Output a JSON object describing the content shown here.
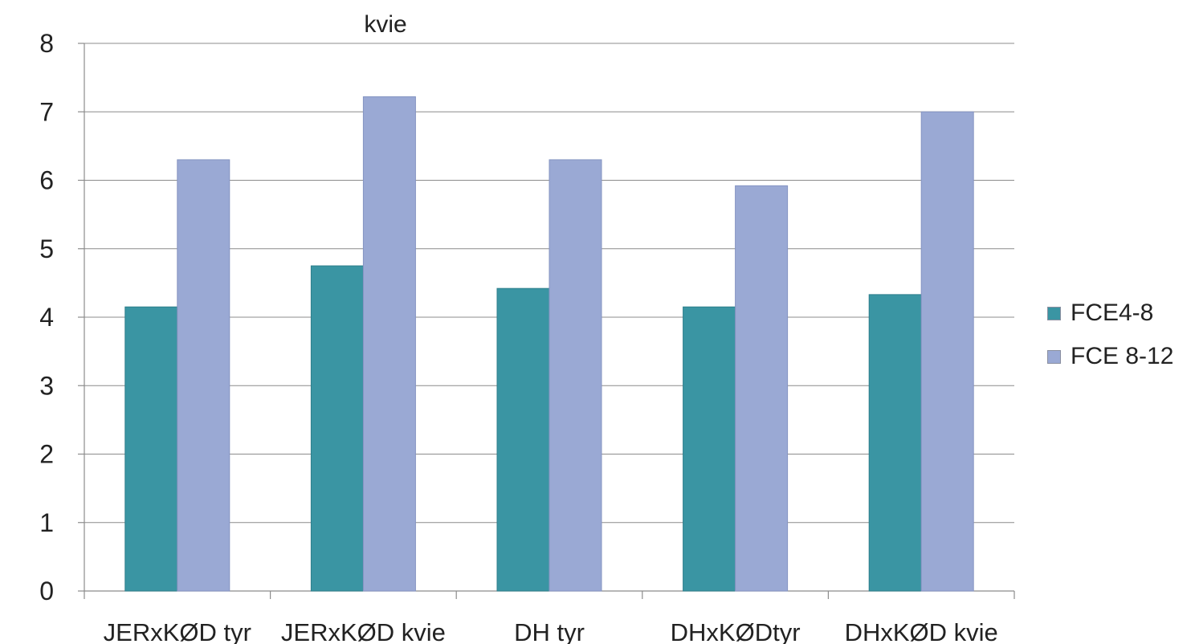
{
  "chart_data": {
    "type": "bar",
    "title": "kvie",
    "categories": [
      "JERxKØD tyr",
      "JERxKØD kvie",
      "DH tyr",
      "DHxKØDtyr",
      "DHxKØD kvie"
    ],
    "series": [
      {
        "name": "FCE4-8",
        "values": [
          4.15,
          4.75,
          4.42,
          4.15,
          4.33
        ],
        "color": "#3a95a3"
      },
      {
        "name": "FCE 8-12",
        "values": [
          6.3,
          7.22,
          6.3,
          5.92,
          7.0
        ],
        "color": "#9aa9d4"
      }
    ],
    "ylim": [
      0,
      8
    ],
    "yticks": [
      "0",
      "1",
      "2",
      "3",
      "4",
      "5",
      "6",
      "7",
      "8"
    ],
    "grid": true,
    "legend_position": "right"
  }
}
